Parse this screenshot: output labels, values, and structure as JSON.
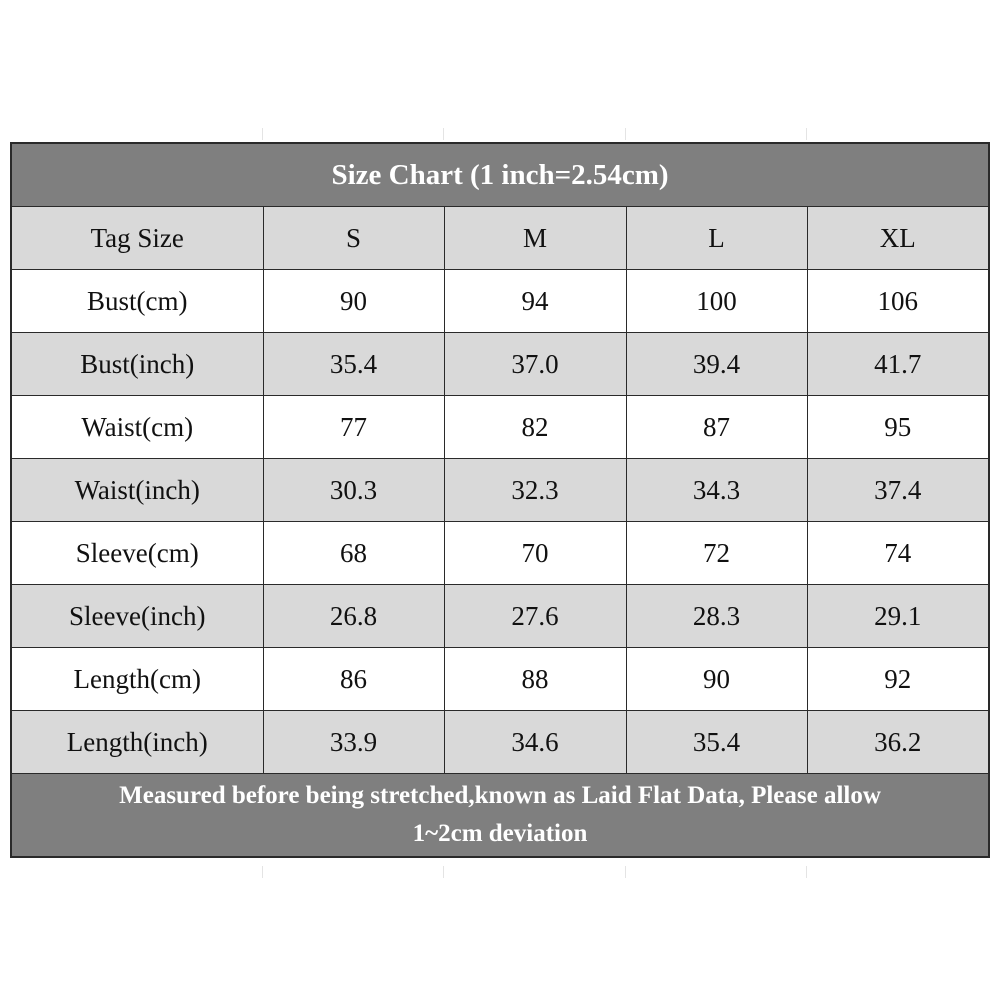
{
  "title": "Size Chart (1 inch=2.54cm)",
  "header": {
    "label": "Tag Size",
    "sizes": [
      "S",
      "M",
      "L",
      "XL"
    ]
  },
  "rows": [
    {
      "label": "Bust(cm)",
      "values": [
        "90",
        "94",
        "100",
        "106"
      ]
    },
    {
      "label": "Bust(inch)",
      "values": [
        "35.4",
        "37.0",
        "39.4",
        "41.7"
      ]
    },
    {
      "label": "Waist(cm)",
      "values": [
        "77",
        "82",
        "87",
        "95"
      ]
    },
    {
      "label": "Waist(inch)",
      "values": [
        "30.3",
        "32.3",
        "34.3",
        "37.4"
      ]
    },
    {
      "label": "Sleeve(cm)",
      "values": [
        "68",
        "70",
        "72",
        "74"
      ]
    },
    {
      "label": "Sleeve(inch)",
      "values": [
        "26.8",
        "27.6",
        "28.3",
        "29.1"
      ]
    },
    {
      "label": "Length(cm)",
      "values": [
        "86",
        "88",
        "90",
        "92"
      ]
    },
    {
      "label": "Length(inch)",
      "values": [
        "33.9",
        "34.6",
        "35.4",
        "36.2"
      ]
    }
  ],
  "footer": {
    "line1": "Measured before being stretched,known as Laid Flat Data, Please allow",
    "line2": "1~2cm deviation"
  },
  "colors": {
    "title_bg": "#7f7f7f",
    "alt_row_bg": "#d9d9d9",
    "border": "#2a2a2a"
  }
}
